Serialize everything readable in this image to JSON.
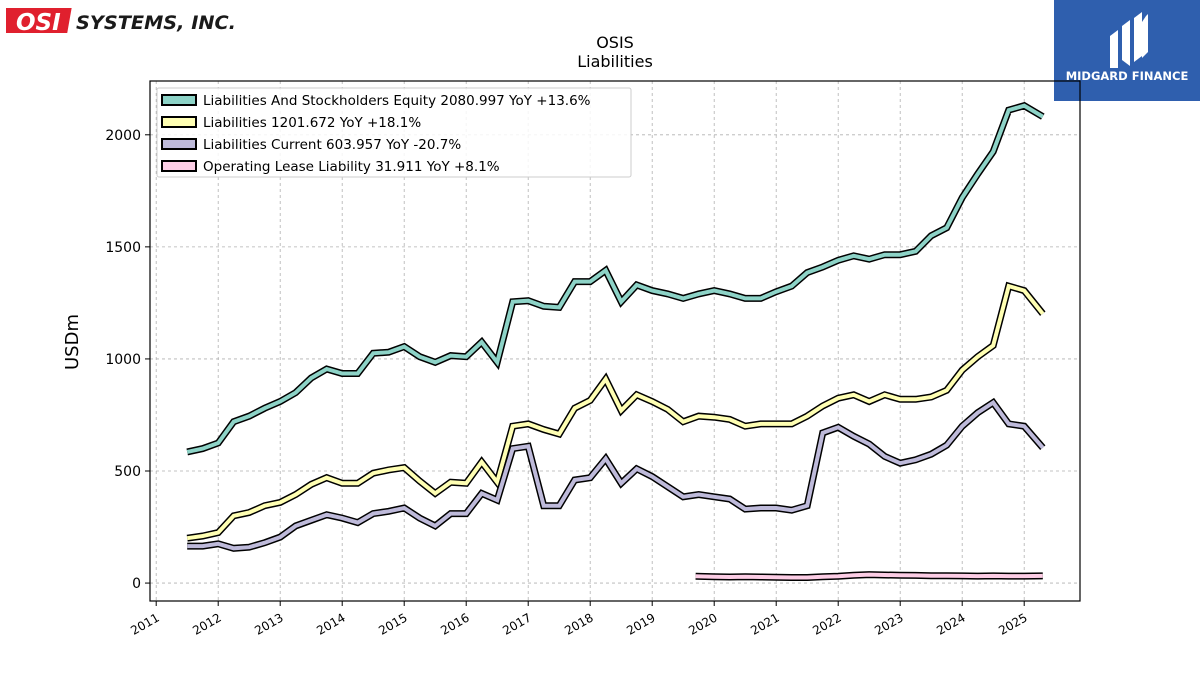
{
  "branding": {
    "left_logo_mark": "OSI",
    "left_logo_text": "SYSTEMS, INC.",
    "right_logo_text": "MIDGARD FINANCE",
    "colors": {
      "osi_red": "#e0202e",
      "midgard_blue": "#2f5fae"
    }
  },
  "chart_data": {
    "type": "line",
    "title": "OSIS",
    "subtitle": "Liabilities",
    "ylabel": "USDm",
    "xlabel": "",
    "xlim": [
      2010.9,
      2025.9
    ],
    "ylim": [
      -80,
      2240
    ],
    "yticks": [
      0,
      500,
      1000,
      1500,
      2000
    ],
    "xticks": [
      "2011",
      "2012",
      "2013",
      "2014",
      "2015",
      "2016",
      "2017",
      "2018",
      "2019",
      "2020",
      "2021",
      "2022",
      "2023",
      "2024",
      "2025"
    ],
    "grid": true,
    "legend_position": "top-left",
    "series": [
      {
        "name": "Liabilities And Stockholders Equity",
        "legend": "Liabilities And Stockholders Equity  2080.997 YoY +13.6%",
        "color": "#8dd3c7",
        "x": [
          2011.5,
          2011.75,
          2012.0,
          2012.25,
          2012.5,
          2012.75,
          2013.0,
          2013.25,
          2013.5,
          2013.75,
          2014.0,
          2014.25,
          2014.5,
          2014.75,
          2015.0,
          2015.25,
          2015.5,
          2015.75,
          2016.0,
          2016.25,
          2016.5,
          2016.75,
          2017.0,
          2017.25,
          2017.5,
          2017.75,
          2018.0,
          2018.25,
          2018.5,
          2018.75,
          2019.0,
          2019.25,
          2019.5,
          2019.75,
          2020.0,
          2020.25,
          2020.5,
          2020.75,
          2021.0,
          2021.25,
          2021.5,
          2021.75,
          2022.0,
          2022.25,
          2022.5,
          2022.75,
          2023.0,
          2023.25,
          2023.5,
          2023.75,
          2024.0,
          2024.25,
          2024.5,
          2024.75,
          2025.0,
          2025.3
        ],
        "values": [
          585,
          600,
          625,
          720,
          745,
          780,
          810,
          850,
          915,
          955,
          935,
          935,
          1025,
          1030,
          1055,
          1010,
          985,
          1015,
          1010,
          1075,
          985,
          1255,
          1260,
          1235,
          1230,
          1345,
          1345,
          1395,
          1255,
          1330,
          1305,
          1290,
          1270,
          1290,
          1305,
          1290,
          1270,
          1270,
          1300,
          1325,
          1385,
          1410,
          1440,
          1460,
          1445,
          1465,
          1465,
          1480,
          1550,
          1585,
          1720,
          1825,
          1925,
          2110,
          2130,
          2080.997
        ]
      },
      {
        "name": "Liabilities",
        "legend": "Liabilities  1201.672 YoY +18.1%",
        "color": "#ffffb3",
        "x": [
          2011.5,
          2011.75,
          2012.0,
          2012.25,
          2012.5,
          2012.75,
          2013.0,
          2013.25,
          2013.5,
          2013.75,
          2014.0,
          2014.25,
          2014.5,
          2014.75,
          2015.0,
          2015.25,
          2015.5,
          2015.75,
          2016.0,
          2016.25,
          2016.5,
          2016.75,
          2017.0,
          2017.25,
          2017.5,
          2017.75,
          2018.0,
          2018.25,
          2018.5,
          2018.75,
          2019.0,
          2019.25,
          2019.5,
          2019.75,
          2020.0,
          2020.25,
          2020.5,
          2020.75,
          2021.0,
          2021.25,
          2021.5,
          2021.75,
          2022.0,
          2022.25,
          2022.5,
          2022.75,
          2023.0,
          2023.25,
          2023.5,
          2023.75,
          2024.0,
          2024.25,
          2024.5,
          2024.75,
          2025.0,
          2025.3
        ],
        "values": [
          200,
          210,
          225,
          300,
          315,
          345,
          360,
          395,
          440,
          470,
          445,
          445,
          490,
          505,
          515,
          455,
          400,
          450,
          445,
          540,
          450,
          700,
          710,
          685,
          665,
          780,
          815,
          910,
          770,
          840,
          810,
          775,
          720,
          745,
          740,
          730,
          700,
          710,
          710,
          710,
          745,
          790,
          825,
          840,
          810,
          840,
          820,
          820,
          830,
          860,
          950,
          1010,
          1060,
          1325,
          1305,
          1201.672
        ]
      },
      {
        "name": "Liabilities Current",
        "legend": "Liabilities Current  603.957 YoY -20.7%",
        "color": "#bebada",
        "x": [
          2011.5,
          2011.75,
          2012.0,
          2012.25,
          2012.5,
          2012.75,
          2013.0,
          2013.25,
          2013.5,
          2013.75,
          2014.0,
          2014.25,
          2014.5,
          2014.75,
          2015.0,
          2015.25,
          2015.5,
          2015.75,
          2016.0,
          2016.25,
          2016.5,
          2016.75,
          2017.0,
          2017.25,
          2017.5,
          2017.75,
          2018.0,
          2018.25,
          2018.5,
          2018.75,
          2019.0,
          2019.25,
          2019.5,
          2019.75,
          2020.0,
          2020.25,
          2020.5,
          2020.75,
          2021.0,
          2021.25,
          2021.5,
          2021.75,
          2022.0,
          2022.25,
          2022.5,
          2022.75,
          2023.0,
          2023.25,
          2023.5,
          2023.75,
          2024.0,
          2024.25,
          2024.5,
          2024.75,
          2025.0,
          2025.3
        ],
        "values": [
          165,
          165,
          175,
          155,
          160,
          180,
          205,
          255,
          280,
          305,
          290,
          270,
          310,
          320,
          335,
          290,
          255,
          310,
          310,
          400,
          370,
          600,
          610,
          345,
          345,
          460,
          470,
          555,
          445,
          510,
          475,
          430,
          385,
          395,
          385,
          375,
          330,
          335,
          335,
          325,
          345,
          670,
          695,
          655,
          620,
          565,
          535,
          550,
          575,
          615,
          700,
          760,
          805,
          710,
          700,
          603.957
        ]
      },
      {
        "name": "Operating Lease Liability",
        "legend": "Operating Lease Liability  31.911 YoY +8.1%",
        "color": "#fccde5",
        "x": [
          2019.7,
          2020.0,
          2020.25,
          2020.5,
          2020.75,
          2021.0,
          2021.25,
          2021.5,
          2021.75,
          2022.0,
          2022.25,
          2022.5,
          2022.75,
          2023.0,
          2023.25,
          2023.5,
          2023.75,
          2024.0,
          2024.25,
          2024.5,
          2024.75,
          2025.0,
          2025.3
        ],
        "values": [
          30,
          28,
          27,
          28,
          27,
          26,
          25,
          25,
          28,
          30,
          35,
          38,
          36,
          35,
          34,
          33,
          33,
          32,
          31,
          32,
          31,
          31,
          31.911
        ]
      }
    ]
  }
}
